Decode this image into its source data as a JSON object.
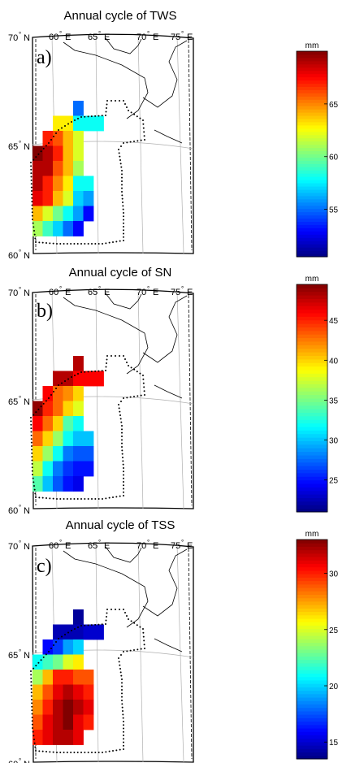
{
  "chart_data": [
    {
      "type": "heatmap",
      "panel_label": "a)",
      "title": "Annual cycle of TWS",
      "lat_labels": [
        "70",
        "65",
        "60"
      ],
      "lon_labels": [
        "60",
        "65",
        "70",
        "75"
      ],
      "lat_suffix": "N",
      "lon_suffix": "E",
      "colorbar": {
        "unit": "mm",
        "ticks": [
          "55",
          "60",
          "65"
        ],
        "range": [
          50.5,
          70
        ]
      },
      "grid": [
        [
          null,
          null,
          null,
          null,
          55,
          null,
          null
        ],
        [
          null,
          null,
          63,
          63,
          58,
          58,
          58
        ],
        [
          null,
          67,
          66,
          64,
          62,
          null,
          null
        ],
        [
          70,
          69,
          67,
          64,
          62,
          null,
          null
        ],
        [
          69,
          69,
          66,
          64,
          61,
          null,
          null
        ],
        [
          69,
          67,
          65,
          63,
          58,
          58,
          null
        ],
        [
          68,
          67,
          64,
          62,
          57,
          56,
          null
        ],
        [
          64,
          62,
          60,
          58,
          56,
          53,
          null
        ],
        [
          61,
          59,
          57,
          55,
          53,
          null,
          null
        ]
      ]
    },
    {
      "type": "heatmap",
      "panel_label": "b)",
      "title": "Annual cycle of SN",
      "lat_labels": [
        "70",
        "65",
        "60"
      ],
      "lon_labels": [
        "60",
        "65",
        "70",
        "75"
      ],
      "lat_suffix": "N",
      "lon_suffix": "E",
      "colorbar": {
        "unit": "mm",
        "ticks": [
          "25",
          "30",
          "35",
          "40",
          "45"
        ],
        "range": [
          21,
          49.5
        ]
      },
      "grid": [
        [
          null,
          null,
          null,
          null,
          48,
          null,
          null
        ],
        [
          null,
          null,
          48,
          48,
          46,
          46,
          46
        ],
        [
          null,
          46,
          43,
          42,
          40,
          null,
          null
        ],
        [
          49,
          45,
          43,
          40,
          38,
          null,
          null
        ],
        [
          46,
          43,
          40,
          34,
          32,
          null,
          null
        ],
        [
          43,
          40,
          36,
          32,
          30,
          30,
          null
        ],
        [
          40,
          36,
          32,
          28,
          27,
          27,
          null
        ],
        [
          37,
          32,
          28,
          26,
          25,
          25,
          null
        ],
        [
          34,
          30,
          27,
          25,
          24,
          null,
          null
        ]
      ]
    },
    {
      "type": "heatmap",
      "panel_label": "c)",
      "title": "Annual cycle of TSS",
      "lat_labels": [
        "70",
        "65",
        "60"
      ],
      "lon_labels": [
        "60",
        "65",
        "70",
        "75"
      ],
      "lat_suffix": "N",
      "lon_suffix": "E",
      "colorbar": {
        "unit": "mm",
        "ticks": [
          "15",
          "20",
          "25",
          "30"
        ],
        "range": [
          13.5,
          33
        ]
      },
      "grid": [
        [
          null,
          null,
          null,
          null,
          14,
          null,
          null
        ],
        [
          null,
          null,
          14.5,
          14.5,
          14.5,
          15,
          15
        ],
        [
          null,
          16,
          17,
          19,
          20,
          null,
          null
        ],
        [
          21,
          22,
          23,
          25,
          26,
          null,
          null
        ],
        [
          24,
          27,
          30,
          30,
          29,
          29,
          null
        ],
        [
          27,
          29,
          31,
          32,
          31,
          30,
          null
        ],
        [
          28,
          30,
          32,
          33,
          32,
          31,
          null
        ],
        [
          29,
          31,
          32,
          33,
          31,
          30,
          null
        ],
        [
          30,
          31,
          32,
          32,
          31,
          null,
          null
        ]
      ]
    }
  ]
}
